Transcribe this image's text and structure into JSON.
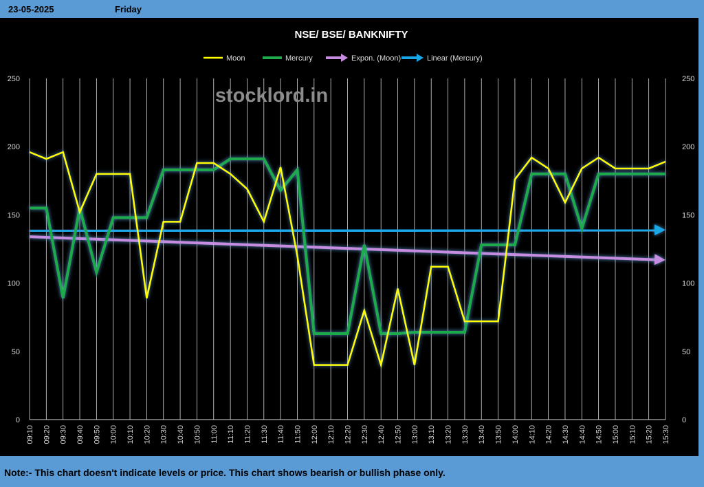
{
  "header": {
    "date": "23-05-2025",
    "day": "Friday"
  },
  "footer": {
    "note": "Note:- This chart doesn't indicate levels or price. This chart shows bearish or bullish phase only."
  },
  "watermark": "stocklord.in",
  "chart_data": {
    "type": "line",
    "title": "NSE/ BSE/ BANKNIFTY",
    "categories": [
      "09:10",
      "09:20",
      "09:30",
      "09:40",
      "09:50",
      "10:00",
      "10:10",
      "10:20",
      "10:30",
      "10:40",
      "10:50",
      "11:00",
      "11:10",
      "11:20",
      "11:30",
      "11:40",
      "11:50",
      "12:00",
      "12:10",
      "12:20",
      "12:30",
      "12:40",
      "12:50",
      "13:00",
      "13:10",
      "13:20",
      "13:30",
      "13:40",
      "13:50",
      "14:00",
      "14:10",
      "14:20",
      "14:30",
      "14:40",
      "14:50",
      "15:00",
      "15:10",
      "15:20",
      "15:30"
    ],
    "series": [
      {
        "name": "Moon",
        "color": "#ffff00",
        "values": [
          196,
          191,
          196,
          152,
          180,
          180,
          180,
          89,
          145,
          145,
          188,
          188,
          180,
          169,
          145,
          185,
          120,
          40,
          40,
          40,
          80,
          40,
          96,
          40,
          112,
          112,
          72,
          72,
          72,
          176,
          192,
          184,
          159,
          184,
          192,
          184,
          184,
          184,
          189
        ]
      },
      {
        "name": "Mercury",
        "color": "#1faa4b",
        "values": [
          155,
          155,
          89,
          155,
          108,
          148,
          148,
          148,
          183,
          183,
          183,
          183,
          191,
          191,
          191,
          168,
          183,
          63,
          63,
          63,
          128,
          63,
          63,
          64,
          64,
          64,
          64,
          128,
          128,
          128,
          180,
          180,
          180,
          140,
          180,
          180,
          180,
          180,
          180
        ]
      },
      {
        "name": "Expon. (Moon)",
        "color": "#c58ce0",
        "trend": true,
        "start": 134,
        "end": 117
      },
      {
        "name": "Linear (Mercury)",
        "color": "#1aa7e8",
        "trend": true,
        "start": 138,
        "end": 139
      }
    ],
    "ylim": [
      0,
      250
    ],
    "yticks": [
      0,
      50,
      100,
      150,
      200,
      250
    ],
    "grid": true,
    "legend": "top-center"
  }
}
